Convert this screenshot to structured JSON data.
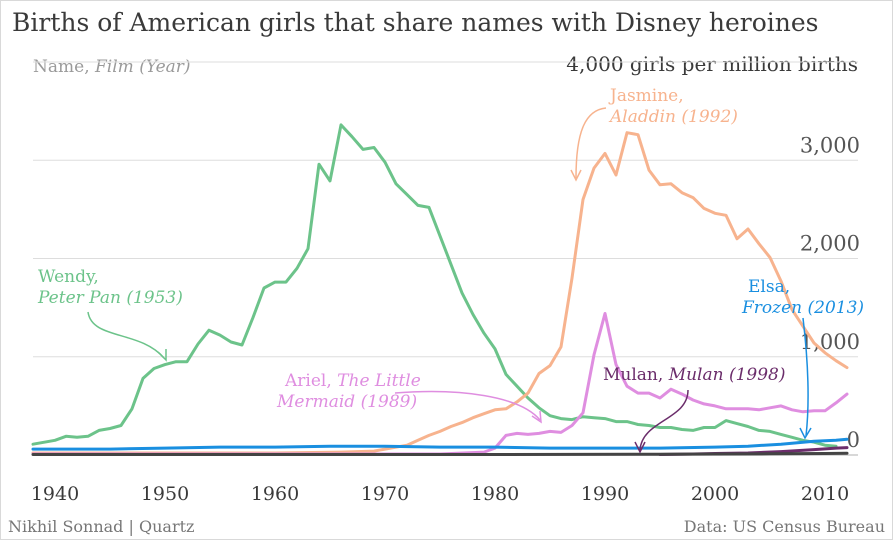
{
  "chart_data": {
    "type": "line",
    "title": "Births of American girls that share names with Disney heroines",
    "legend_label": {
      "name": "Name",
      "film": "Film (Year)"
    },
    "y_unit_label": "4,000 girls per million births",
    "ylim": [
      0,
      4000
    ],
    "xlim": [
      1938,
      2013
    ],
    "y_ticks": [
      {
        "value": 0,
        "label": "0"
      },
      {
        "value": 1000,
        "label": "1,000"
      },
      {
        "value": 2000,
        "label": "2,000"
      },
      {
        "value": 3000,
        "label": "3,000"
      }
    ],
    "x_ticks": [
      {
        "value": 1940,
        "label": "1940"
      },
      {
        "value": 1950,
        "label": "1950"
      },
      {
        "value": 1960,
        "label": "1960"
      },
      {
        "value": 1970,
        "label": "1970"
      },
      {
        "value": 1980,
        "label": "1980"
      },
      {
        "value": 1990,
        "label": "1990"
      },
      {
        "value": 2000,
        "label": "2000"
      },
      {
        "value": 2010,
        "label": "2010"
      }
    ],
    "series": [
      {
        "name": "Wendy",
        "film": "Peter Pan (1953)",
        "color": "#6cc38a",
        "points": [
          [
            1938,
            110
          ],
          [
            1940,
            150
          ],
          [
            1941,
            190
          ],
          [
            1942,
            180
          ],
          [
            1943,
            190
          ],
          [
            1944,
            250
          ],
          [
            1945,
            270
          ],
          [
            1946,
            300
          ],
          [
            1947,
            470
          ],
          [
            1948,
            780
          ],
          [
            1949,
            880
          ],
          [
            1950,
            920
          ],
          [
            1951,
            950
          ],
          [
            1952,
            950
          ],
          [
            1953,
            1130
          ],
          [
            1954,
            1270
          ],
          [
            1955,
            1220
          ],
          [
            1956,
            1150
          ],
          [
            1957,
            1120
          ],
          [
            1958,
            1400
          ],
          [
            1959,
            1700
          ],
          [
            1960,
            1760
          ],
          [
            1961,
            1760
          ],
          [
            1962,
            1900
          ],
          [
            1963,
            2100
          ],
          [
            1964,
            2960
          ],
          [
            1965,
            2790
          ],
          [
            1966,
            3360
          ],
          [
            1967,
            3240
          ],
          [
            1968,
            3110
          ],
          [
            1969,
            3130
          ],
          [
            1970,
            2980
          ],
          [
            1971,
            2760
          ],
          [
            1972,
            2650
          ],
          [
            1973,
            2540
          ],
          [
            1974,
            2520
          ],
          [
            1975,
            2230
          ],
          [
            1976,
            1940
          ],
          [
            1977,
            1650
          ],
          [
            1978,
            1430
          ],
          [
            1979,
            1240
          ],
          [
            1980,
            1080
          ],
          [
            1981,
            820
          ],
          [
            1982,
            700
          ],
          [
            1983,
            580
          ],
          [
            1984,
            480
          ],
          [
            1985,
            400
          ],
          [
            1986,
            370
          ],
          [
            1987,
            360
          ],
          [
            1988,
            390
          ],
          [
            1989,
            380
          ],
          [
            1990,
            370
          ],
          [
            1991,
            340
          ],
          [
            1992,
            340
          ],
          [
            1993,
            310
          ],
          [
            1994,
            300
          ],
          [
            1995,
            280
          ],
          [
            1996,
            280
          ],
          [
            1997,
            260
          ],
          [
            1998,
            250
          ],
          [
            1999,
            280
          ],
          [
            2000,
            280
          ],
          [
            2001,
            350
          ],
          [
            2002,
            320
          ],
          [
            2003,
            290
          ],
          [
            2004,
            250
          ],
          [
            2005,
            240
          ],
          [
            2006,
            210
          ],
          [
            2007,
            180
          ],
          [
            2008,
            150
          ],
          [
            2009,
            130
          ],
          [
            2010,
            100
          ],
          [
            2011,
            90
          ]
        ]
      },
      {
        "name": "Jasmine",
        "film": "Aladdin (1992)",
        "color": "#f7b38e",
        "points": [
          [
            1938,
            20
          ],
          [
            1960,
            20
          ],
          [
            1966,
            30
          ],
          [
            1969,
            40
          ],
          [
            1970,
            60
          ],
          [
            1972,
            100
          ],
          [
            1973,
            150
          ],
          [
            1974,
            200
          ],
          [
            1975,
            240
          ],
          [
            1976,
            290
          ],
          [
            1977,
            330
          ],
          [
            1978,
            380
          ],
          [
            1979,
            420
          ],
          [
            1980,
            460
          ],
          [
            1981,
            470
          ],
          [
            1982,
            540
          ],
          [
            1983,
            630
          ],
          [
            1984,
            830
          ],
          [
            1985,
            910
          ],
          [
            1986,
            1100
          ],
          [
            1987,
            1800
          ],
          [
            1988,
            2600
          ],
          [
            1989,
            2920
          ],
          [
            1990,
            3070
          ],
          [
            1991,
            2850
          ],
          [
            1992,
            3280
          ],
          [
            1993,
            3260
          ],
          [
            1994,
            2900
          ],
          [
            1995,
            2750
          ],
          [
            1996,
            2760
          ],
          [
            1997,
            2670
          ],
          [
            1998,
            2620
          ],
          [
            1999,
            2510
          ],
          [
            2000,
            2460
          ],
          [
            2001,
            2440
          ],
          [
            2002,
            2200
          ],
          [
            2003,
            2300
          ],
          [
            2004,
            2150
          ],
          [
            2005,
            2010
          ],
          [
            2006,
            1770
          ],
          [
            2007,
            1480
          ],
          [
            2008,
            1310
          ],
          [
            2009,
            1140
          ],
          [
            2010,
            1040
          ],
          [
            2011,
            960
          ],
          [
            2012,
            890
          ]
        ]
      },
      {
        "name": "Ariel",
        "film": "The Little Mermaid (1989)",
        "color": "#df8ee0",
        "points": [
          [
            1938,
            10
          ],
          [
            1975,
            10
          ],
          [
            1979,
            30
          ],
          [
            1980,
            70
          ],
          [
            1981,
            200
          ],
          [
            1982,
            220
          ],
          [
            1983,
            210
          ],
          [
            1984,
            220
          ],
          [
            1985,
            240
          ],
          [
            1986,
            230
          ],
          [
            1987,
            300
          ],
          [
            1988,
            430
          ],
          [
            1989,
            1020
          ],
          [
            1990,
            1440
          ],
          [
            1991,
            920
          ],
          [
            1992,
            700
          ],
          [
            1993,
            630
          ],
          [
            1994,
            630
          ],
          [
            1995,
            580
          ],
          [
            1996,
            670
          ],
          [
            1997,
            620
          ],
          [
            1998,
            560
          ],
          [
            1999,
            520
          ],
          [
            2000,
            500
          ],
          [
            2001,
            470
          ],
          [
            2002,
            470
          ],
          [
            2003,
            470
          ],
          [
            2004,
            460
          ],
          [
            2005,
            480
          ],
          [
            2006,
            500
          ],
          [
            2007,
            460
          ],
          [
            2008,
            440
          ],
          [
            2009,
            450
          ],
          [
            2010,
            450
          ],
          [
            2011,
            530
          ],
          [
            2012,
            620
          ]
        ]
      },
      {
        "name": "Elsa",
        "film": "Frozen (2013)",
        "color": "#1a8fe0",
        "points": [
          [
            1938,
            60
          ],
          [
            1945,
            60
          ],
          [
            1950,
            70
          ],
          [
            1955,
            80
          ],
          [
            1960,
            80
          ],
          [
            1965,
            90
          ],
          [
            1970,
            90
          ],
          [
            1975,
            80
          ],
          [
            1980,
            80
          ],
          [
            1985,
            70
          ],
          [
            1990,
            70
          ],
          [
            1995,
            70
          ],
          [
            2000,
            80
          ],
          [
            2003,
            90
          ],
          [
            2006,
            110
          ],
          [
            2009,
            140
          ],
          [
            2011,
            150
          ],
          [
            2012,
            160
          ]
        ]
      },
      {
        "name": "Mulan",
        "film": "Mulan (1998)",
        "color": "#6b2d6b",
        "points": [
          [
            1995,
            5
          ],
          [
            1998,
            10
          ],
          [
            2000,
            15
          ],
          [
            2003,
            20
          ],
          [
            2006,
            35
          ],
          [
            2009,
            55
          ],
          [
            2011,
            70
          ],
          [
            2012,
            75
          ]
        ]
      },
      {
        "name": "",
        "film": "",
        "color": "#444444",
        "points": [
          [
            1938,
            5
          ],
          [
            1960,
            5
          ],
          [
            1980,
            5
          ],
          [
            1995,
            8
          ],
          [
            2000,
            10
          ],
          [
            2005,
            12
          ],
          [
            2010,
            15
          ],
          [
            2012,
            18
          ]
        ]
      }
    ],
    "annotations": [
      {
        "series": "Wendy",
        "name": "Wendy,",
        "film": "Peter Pan (1953)"
      },
      {
        "series": "Jasmine",
        "name": "Jasmine,",
        "film": "Aladdin (1992)"
      },
      {
        "series": "Ariel",
        "name": "Ariel, ",
        "film_line1": "The Little",
        "film_line2": "Mermaid (1989)"
      },
      {
        "series": "Elsa",
        "name": "Elsa,",
        "film": "Frozen (2013)"
      },
      {
        "series": "Mulan",
        "name": "Mulan, ",
        "film": "Mulan (1998)"
      }
    ]
  },
  "footer": {
    "credit": "Nikhil Sonnad | Quartz",
    "source": "Data: US Census Bureau"
  }
}
